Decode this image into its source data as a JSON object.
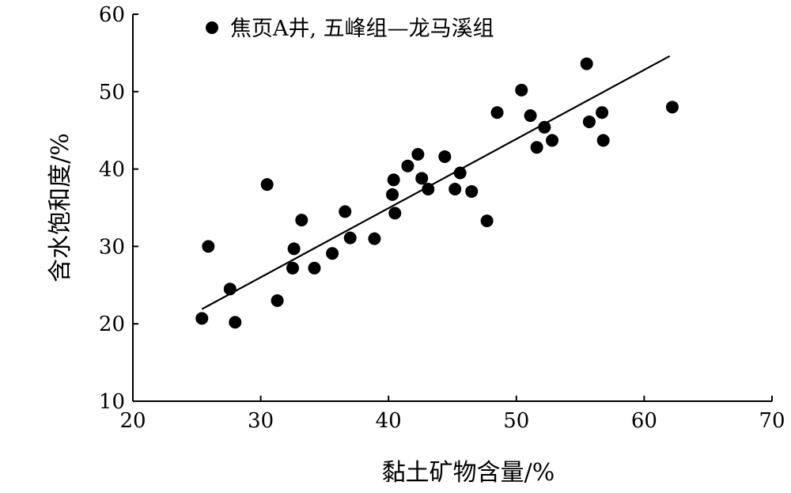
{
  "chart_data": {
    "type": "scatter",
    "title": "",
    "xlabel": "黏土矿物含量/%",
    "ylabel": "含水饱和度/%",
    "xlim": [
      20,
      70
    ],
    "ylim": [
      10,
      60
    ],
    "xticks": [
      20,
      30,
      40,
      50,
      60,
      70
    ],
    "yticks": [
      10,
      20,
      30,
      40,
      50,
      60
    ],
    "grid": false,
    "legend_position": "top-left",
    "series": [
      {
        "name": "焦页A井, 五峰组—龙马溪组",
        "marker": "filled-circle",
        "color": "#000000",
        "points": [
          [
            25.4,
            20.7
          ],
          [
            25.9,
            30.0
          ],
          [
            27.6,
            24.5
          ],
          [
            28.0,
            20.2
          ],
          [
            30.5,
            38.0
          ],
          [
            31.3,
            23.0
          ],
          [
            32.5,
            27.2
          ],
          [
            32.6,
            29.7
          ],
          [
            33.2,
            33.4
          ],
          [
            34.2,
            27.2
          ],
          [
            35.6,
            29.1
          ],
          [
            36.6,
            34.5
          ],
          [
            37.0,
            31.1
          ],
          [
            38.9,
            31.0
          ],
          [
            40.3,
            36.7
          ],
          [
            40.4,
            38.6
          ],
          [
            40.5,
            34.3
          ],
          [
            41.5,
            40.4
          ],
          [
            42.3,
            41.9
          ],
          [
            42.6,
            38.8
          ],
          [
            43.1,
            37.4
          ],
          [
            44.4,
            41.6
          ],
          [
            45.2,
            37.4
          ],
          [
            45.6,
            39.5
          ],
          [
            46.5,
            37.1
          ],
          [
            47.7,
            33.3
          ],
          [
            48.5,
            47.3
          ],
          [
            50.4,
            50.2
          ],
          [
            51.1,
            46.9
          ],
          [
            51.6,
            42.8
          ],
          [
            52.2,
            45.4
          ],
          [
            52.8,
            43.7
          ],
          [
            55.5,
            53.6
          ],
          [
            55.7,
            46.1
          ],
          [
            56.7,
            47.3
          ],
          [
            56.8,
            43.7
          ],
          [
            62.2,
            48.0
          ]
        ]
      }
    ],
    "trendline": {
      "type": "linear",
      "x": [
        25.4,
        62.0
      ],
      "y": [
        21.9,
        54.6
      ]
    }
  }
}
